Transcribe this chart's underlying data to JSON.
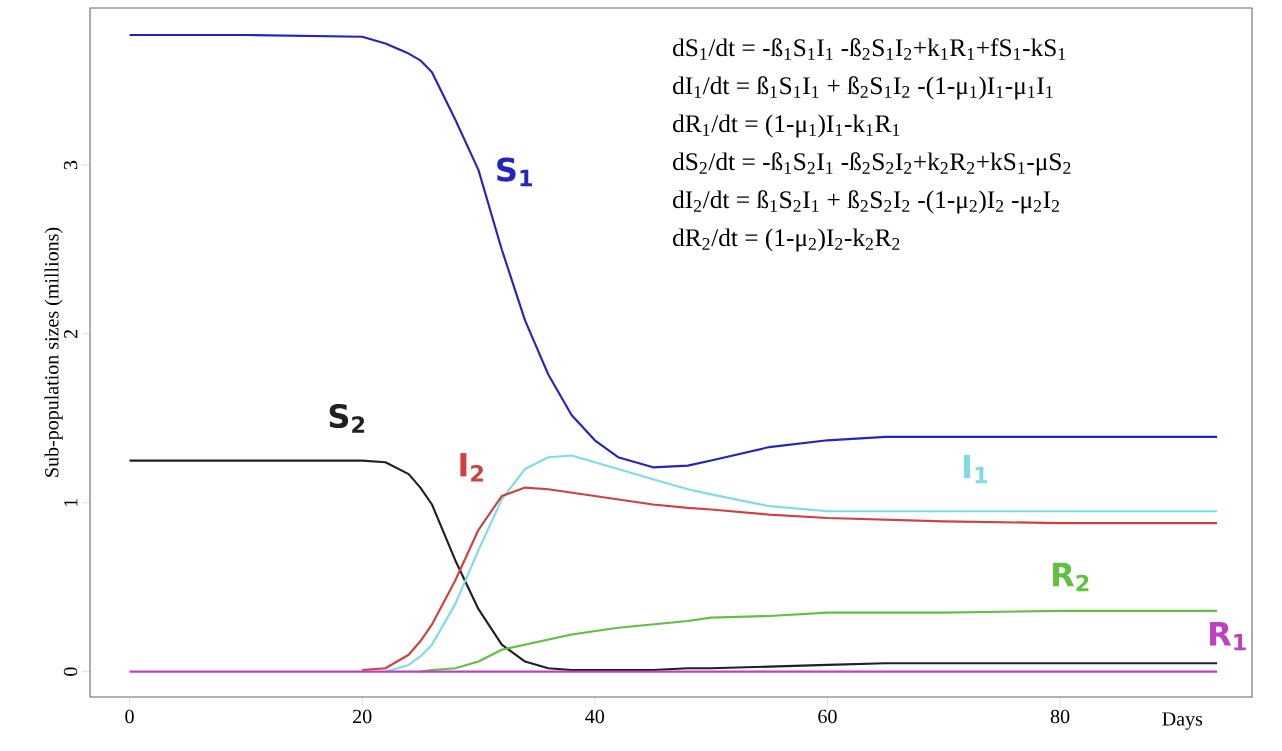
{
  "chart_data": {
    "type": "line",
    "xlabel": "Days",
    "ylabel": "Sub-population sizes (millions)",
    "x": [
      0,
      10,
      20,
      22,
      24,
      25,
      26,
      28,
      30,
      32,
      34,
      36,
      38,
      40,
      42,
      45,
      48,
      50,
      55,
      60,
      65,
      70,
      80,
      93.5
    ],
    "series": [
      {
        "name": "S$_{1}$",
        "color": "#2424c0",
        "values": [
          3.77,
          3.77,
          3.76,
          3.72,
          3.66,
          3.62,
          3.55,
          3.27,
          2.97,
          2.5,
          2.08,
          1.76,
          1.52,
          1.37,
          1.27,
          1.21,
          1.22,
          1.25,
          1.33,
          1.37,
          1.39,
          1.39,
          1.39,
          1.39
        ]
      },
      {
        "name": "S$_{2}$",
        "color": "#202020",
        "values": [
          1.25,
          1.25,
          1.25,
          1.24,
          1.17,
          1.09,
          0.99,
          0.66,
          0.37,
          0.16,
          0.06,
          0.02,
          0.01,
          0.01,
          0.01,
          0.01,
          0.02,
          0.02,
          0.03,
          0.04,
          0.05,
          0.05,
          0.05,
          0.05
        ]
      },
      {
        "name": "I$_{1}$",
        "color": "#7fdce6",
        "values": [
          null,
          null,
          null,
          0,
          0.04,
          0.09,
          0.16,
          0.4,
          0.72,
          1.02,
          1.2,
          1.27,
          1.28,
          1.24,
          1.2,
          1.14,
          1.08,
          1.05,
          0.98,
          0.95,
          0.95,
          0.95,
          0.95,
          0.95
        ]
      },
      {
        "name": "I$_{2}$",
        "color": "#d04040",
        "values": [
          null,
          null,
          0.01,
          0.02,
          0.1,
          0.18,
          0.28,
          0.54,
          0.84,
          1.04,
          1.09,
          1.08,
          1.06,
          1.04,
          1.02,
          0.99,
          0.97,
          0.96,
          0.93,
          0.91,
          0.9,
          0.89,
          0.88,
          0.88
        ]
      },
      {
        "name": "R$_{2}$",
        "color": "#60c040",
        "values": [
          null,
          null,
          null,
          null,
          null,
          0,
          0.01,
          0.02,
          0.06,
          0.13,
          0.16,
          0.19,
          0.22,
          0.24,
          0.26,
          0.28,
          0.3,
          0.32,
          0.33,
          0.35,
          0.35,
          0.35,
          0.36,
          0.36
        ]
      },
      {
        "name": "R$_{1}$",
        "color": "#c040c0",
        "values": [
          0,
          0,
          0,
          0,
          0,
          0,
          0,
          0,
          0,
          0,
          0,
          0,
          0,
          0,
          0,
          0,
          0,
          0,
          0,
          0,
          0,
          0,
          0,
          0
        ]
      }
    ],
    "xlim": [
      -3.4,
      96.5
    ],
    "ylim": [
      -0.15,
      3.93
    ],
    "xticks": [
      0,
      20,
      40,
      60,
      80
    ],
    "yticks": [
      0,
      1,
      2,
      3
    ],
    "grid": false,
    "annotations": [
      "dS$_{1}$/dt = -ß$_{1}$S$_{1}$I$_{1}$ -ß$_{2}$S$_{1}$I$_{2}$+k$_{1}$R$_{1}$+fS$_{1}$-kS$_{1}$",
      "dI$_{1}$/dt = ß$_{1}$S$_{1}$I$_{1}$ + ß$_{2}$S$_{1}$I$_{2}$ -(1-μ$_{1}$)I$_{1}$-μ$_{1}$I$_{1}$",
      "dR$_{1}$/dt = (1-μ$_{1}$)I$_{1}$-k$_{1}$R$_{1}$",
      "dS$_{2}$/dt = -ß$_{1}$S$_{2}$I$_{1}$ -ß$_{2}$S$_{2}$I$_{2}$+k$_{2}$R$_{2}$+kS$_{1}$-μS$_{2}$",
      "dI$_{2}$/dt = ß$_{1}$S$_{2}$I$_{1}$ + ß$_{2}$S$_{2}$I$_{2}$ -(1-μ$_{2}$)I$_{2}$ -μ$_{2}$I$_{2}$",
      "dR$_{2}$/dt = (1-μ$_{2}$)I$_{2}$-k$_{2}$R$_{2}$"
    ]
  }
}
